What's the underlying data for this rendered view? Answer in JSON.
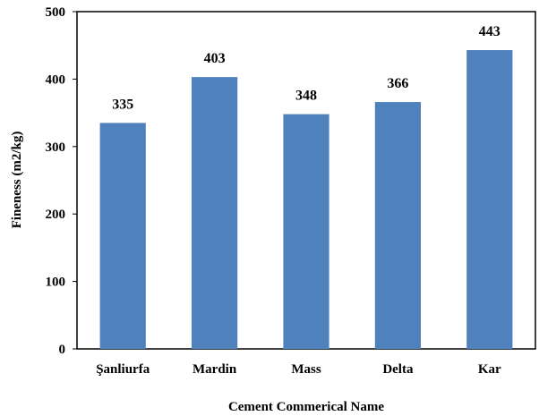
{
  "chart_data": {
    "type": "bar",
    "title": "",
    "xlabel": "Cement Commerical Name",
    "ylabel": "Fineness (m2/kg)",
    "categories": [
      "Şanliurfa",
      "Mardin",
      "Mass",
      "Delta",
      "Kar"
    ],
    "values": [
      335,
      403,
      348,
      366,
      443
    ],
    "data_labels": [
      "335",
      "403",
      "348",
      "366",
      "443"
    ],
    "ylim": [
      0,
      500
    ],
    "yticks": [
      0,
      100,
      200,
      300,
      400,
      500
    ],
    "ytick_labels": [
      "0",
      "100",
      "200",
      "300",
      "400",
      "500"
    ],
    "grid": false,
    "legend": "none",
    "bar_color": "#4f81bd"
  }
}
